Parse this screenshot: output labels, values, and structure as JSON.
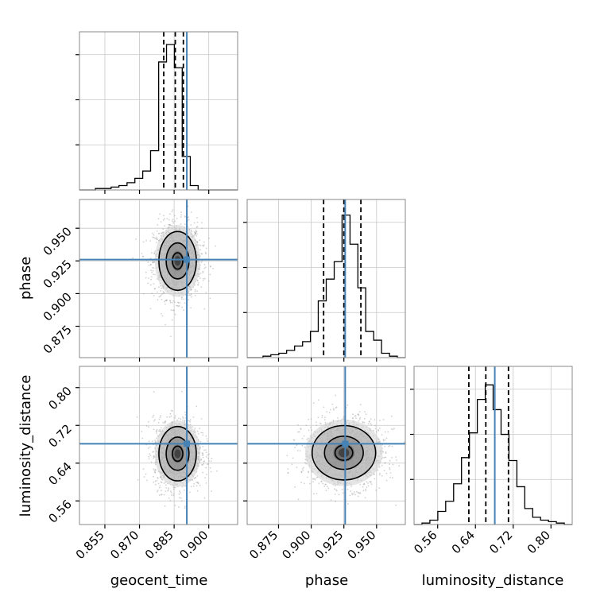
{
  "chart_data": {
    "type": "corner",
    "parameters": [
      "geocent_time",
      "phase",
      "luminosity_distance"
    ],
    "truth": {
      "geocent_time": 0.8905,
      "phase": 0.926,
      "luminosity_distance": 0.681
    },
    "ranges": {
      "geocent_time": [
        0.844,
        0.9125
      ],
      "phase": [
        0.851,
        0.972
      ],
      "luminosity_distance": [
        0.51,
        0.845
      ]
    },
    "quantiles": {
      "geocent_time": [
        0.8805,
        0.8855,
        0.889
      ],
      "phase": [
        0.9095,
        0.925,
        0.938
      ],
      "luminosity_distance": [
        0.626,
        0.662,
        0.71
      ]
    },
    "ticks": {
      "geocent_time": [
        "0.855",
        "0.870",
        "0.885",
        "0.900"
      ],
      "phase": [
        "0.875",
        "0.900",
        "0.925",
        "0.950"
      ],
      "luminosity_distance": [
        "0.56",
        "0.64",
        "0.72",
        "0.80"
      ]
    },
    "histograms": {
      "geocent_time": {
        "edges": [
          0.844,
          0.8474,
          0.8509,
          0.8543,
          0.8577,
          0.8611,
          0.8646,
          0.868,
          0.8714,
          0.8748,
          0.8783,
          0.8817,
          0.8851,
          0.8885,
          0.892,
          0.8954,
          0.8988,
          0.9022,
          0.9057,
          0.9091,
          0.9125
        ],
        "counts": [
          0,
          0,
          0.01,
          0.01,
          0.02,
          0.03,
          0.05,
          0.08,
          0.13,
          0.27,
          0.88,
          1.0,
          0.84,
          0.23,
          0.03,
          0,
          0,
          0,
          0,
          0
        ]
      },
      "phase": {
        "edges": [
          0.851,
          0.857,
          0.8631,
          0.8691,
          0.8752,
          0.8812,
          0.8873,
          0.8934,
          0.8994,
          0.9054,
          0.9115,
          0.9176,
          0.9236,
          0.9297,
          0.9357,
          0.9417,
          0.9478,
          0.9538,
          0.9599,
          0.9659,
          0.972
        ],
        "counts": [
          0,
          0,
          0.01,
          0.02,
          0.03,
          0.05,
          0.08,
          0.11,
          0.18,
          0.39,
          0.54,
          0.66,
          0.98,
          0.78,
          0.48,
          0.18,
          0.12,
          0.03,
          0.01,
          0
        ]
      },
      "luminosity_distance": {
        "edges": [
          0.51,
          0.5268,
          0.5435,
          0.5603,
          0.577,
          0.5938,
          0.6105,
          0.6273,
          0.644,
          0.6608,
          0.6775,
          0.6943,
          0.711,
          0.7278,
          0.7445,
          0.7613,
          0.778,
          0.7948,
          0.8115,
          0.8283,
          0.845
        ],
        "counts": [
          0,
          0.01,
          0.03,
          0.09,
          0.16,
          0.28,
          0.46,
          0.63,
          0.86,
          0.96,
          0.79,
          0.62,
          0.44,
          0.26,
          0.11,
          0.05,
          0.03,
          0.02,
          0.01,
          0
        ]
      }
    },
    "scatter": {
      "phase|geocent_time": {
        "mean_x": 0.8865,
        "mean_y": 0.925,
        "sd_x": 0.0045,
        "sd_y": 0.0125,
        "contour_sd": [
          0.5,
          1.1,
          1.8
        ]
      },
      "luminosity_distance|geocent_time": {
        "mean_x": 0.8865,
        "mean_y": 0.66,
        "sd_x": 0.0045,
        "sd_y": 0.032,
        "contour_sd": [
          0.5,
          1.1,
          1.8
        ]
      },
      "luminosity_distance|phase": {
        "mean_x": 0.925,
        "mean_y": 0.662,
        "sd_x": 0.0135,
        "sd_y": 0.032,
        "contour_sd": [
          0.5,
          1.1,
          1.8
        ]
      }
    },
    "grid": true
  }
}
